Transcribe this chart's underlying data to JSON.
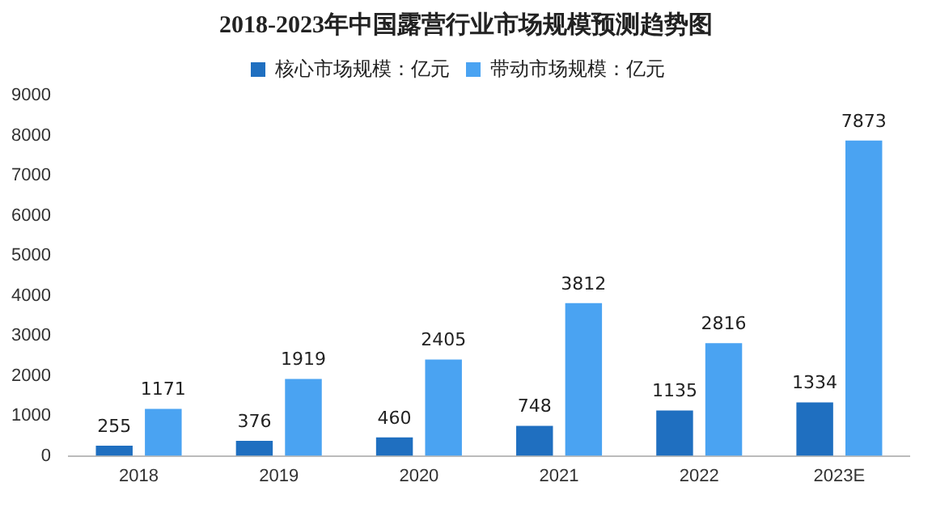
{
  "chart_data": {
    "type": "bar",
    "title": "2018-2023年中国露营行业市场规模预测趋势图",
    "categories": [
      "2018",
      "2019",
      "2020",
      "2021",
      "2022",
      "2023E"
    ],
    "series": [
      {
        "name": "核心市场规模：亿元",
        "color": "#1f6fc0",
        "values": [
          255,
          376,
          460,
          748,
          1135,
          1334
        ]
      },
      {
        "name": "带动市场规模：亿元",
        "color": "#4aa3f2",
        "values": [
          1171,
          1919,
          2405,
          3812,
          2816,
          7873
        ]
      }
    ],
    "ylim": [
      0,
      9000
    ],
    "yticks": [
      0,
      1000,
      2000,
      3000,
      4000,
      5000,
      6000,
      7000,
      8000,
      9000
    ],
    "grid": false,
    "legend": "top",
    "data_labels": true
  }
}
